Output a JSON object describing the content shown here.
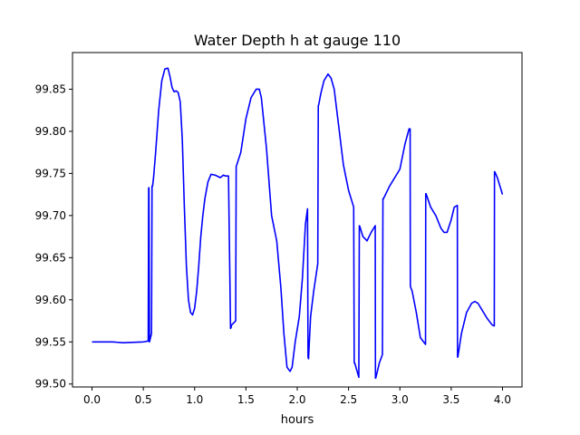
{
  "chart_data": {
    "type": "line",
    "title": "Water Depth h at gauge 110",
    "xlabel": "hours",
    "ylabel": "",
    "xlim": [
      -0.19,
      4.19
    ],
    "ylim": [
      99.4965,
      99.8935
    ],
    "xticks": [
      0.0,
      0.5,
      1.0,
      1.5,
      2.0,
      2.5,
      3.0,
      3.5,
      4.0
    ],
    "xtick_labels": [
      "0.0",
      "0.5",
      "1.0",
      "1.5",
      "2.0",
      "2.5",
      "3.0",
      "3.5",
      "4.0"
    ],
    "yticks": [
      99.5,
      99.55,
      99.6,
      99.65,
      99.7,
      99.75,
      99.8,
      99.85
    ],
    "ytick_labels": [
      "99.50",
      "99.55",
      "99.60",
      "99.65",
      "99.70",
      "99.75",
      "99.80",
      "99.85"
    ],
    "grid": false,
    "series": [
      {
        "color": "#0000ff",
        "x": [
          0.0,
          0.2,
          0.3,
          0.5,
          0.548,
          0.552,
          0.555,
          0.56,
          0.58,
          0.585,
          0.59,
          0.6,
          0.62,
          0.65,
          0.68,
          0.71,
          0.74,
          0.76,
          0.78,
          0.8,
          0.82,
          0.84,
          0.86,
          0.88,
          0.9,
          0.92,
          0.94,
          0.96,
          0.98,
          1.0,
          1.02,
          1.04,
          1.06,
          1.08,
          1.1,
          1.13,
          1.16,
          1.2,
          1.25,
          1.28,
          1.3,
          1.33,
          1.35,
          1.355,
          1.36,
          1.4,
          1.405,
          1.41,
          1.45,
          1.5,
          1.55,
          1.6,
          1.63,
          1.65,
          1.7,
          1.75,
          1.8,
          1.84,
          1.87,
          1.9,
          1.93,
          1.95,
          1.98,
          2.02,
          2.05,
          2.08,
          2.1,
          2.105,
          2.11,
          2.13,
          2.16,
          2.2,
          2.205,
          2.21,
          2.23,
          2.26,
          2.3,
          2.33,
          2.36,
          2.4,
          2.45,
          2.5,
          2.55,
          2.555,
          2.56,
          2.6,
          2.605,
          2.61,
          2.64,
          2.68,
          2.72,
          2.76,
          2.762,
          2.765,
          2.8,
          2.83,
          2.835,
          2.84,
          2.9,
          3.0,
          3.05,
          3.09,
          3.1,
          3.102,
          3.105,
          3.12,
          3.16,
          3.2,
          3.25,
          3.252,
          3.255,
          3.3,
          3.35,
          3.4,
          3.43,
          3.46,
          3.5,
          3.53,
          3.56,
          3.562,
          3.565,
          3.6,
          3.65,
          3.7,
          3.73,
          3.76,
          3.8,
          3.85,
          3.9,
          3.92,
          3.922,
          3.925,
          3.95,
          4.0
        ],
        "y": [
          99.55,
          99.55,
          99.549,
          99.55,
          99.551,
          99.733,
          99.733,
          99.55,
          99.56,
          99.735,
          99.735,
          99.745,
          99.775,
          99.825,
          99.86,
          99.874,
          99.875,
          99.865,
          99.852,
          99.847,
          99.848,
          99.846,
          99.835,
          99.79,
          99.71,
          99.64,
          99.6,
          99.585,
          99.582,
          99.59,
          99.61,
          99.64,
          99.675,
          99.7,
          99.72,
          99.74,
          99.749,
          99.748,
          99.745,
          99.748,
          99.747,
          99.747,
          99.566,
          99.567,
          99.57,
          99.575,
          99.758,
          99.76,
          99.775,
          99.815,
          99.84,
          99.85,
          99.85,
          99.84,
          99.78,
          99.7,
          99.67,
          99.615,
          99.56,
          99.52,
          99.515,
          99.52,
          99.55,
          99.58,
          99.625,
          99.69,
          99.708,
          99.532,
          99.53,
          99.58,
          99.61,
          99.643,
          99.83,
          99.832,
          99.845,
          99.86,
          99.868,
          99.863,
          99.85,
          99.81,
          99.76,
          99.73,
          99.71,
          99.525,
          99.525,
          99.508,
          99.688,
          99.687,
          99.675,
          99.67,
          99.68,
          99.688,
          99.507,
          99.507,
          99.525,
          99.535,
          99.72,
          99.72,
          99.735,
          99.755,
          99.785,
          99.803,
          99.803,
          99.617,
          99.615,
          99.61,
          99.585,
          99.555,
          99.547,
          99.726,
          99.726,
          99.71,
          99.7,
          99.685,
          99.68,
          99.68,
          99.695,
          99.71,
          99.712,
          99.532,
          99.532,
          99.56,
          99.585,
          99.596,
          99.598,
          99.596,
          99.588,
          99.578,
          99.57,
          99.569,
          99.752,
          99.752,
          99.745,
          99.725
        ]
      }
    ]
  }
}
